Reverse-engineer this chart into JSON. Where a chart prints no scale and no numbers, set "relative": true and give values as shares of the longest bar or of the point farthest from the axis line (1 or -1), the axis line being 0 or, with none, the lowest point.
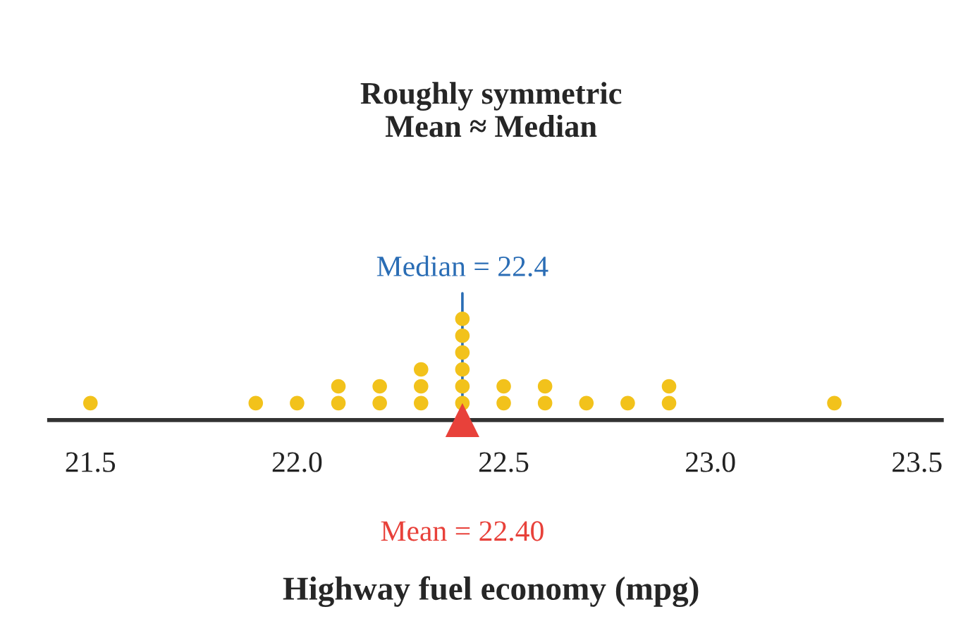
{
  "chart_data": {
    "type": "scatter",
    "title": "Roughly symmetric\nMean ≈ Median",
    "xlabel": "Highway fuel economy (mpg)",
    "relative": true,
    "marker": "circle",
    "grid": false,
    "legend": false,
    "series": [
      {
        "color": "#f2c21b",
        "x": [
          21.5,
          21.9,
          22.0,
          22.1,
          22.1,
          22.2,
          22.2,
          22.3,
          22.3,
          22.3,
          22.4,
          22.4,
          22.4,
          22.4,
          22.4,
          22.4,
          22.5,
          22.5,
          22.6,
          22.6,
          22.7,
          22.8,
          22.9,
          22.9,
          23.3
        ],
        "values": [
          0.167,
          0.167,
          0.167,
          0.167,
          0.333,
          0.167,
          0.333,
          0.167,
          0.333,
          0.5,
          0.167,
          0.333,
          0.5,
          0.667,
          0.833,
          1,
          0.167,
          0.333,
          0.167,
          0.333,
          0.167,
          0.167,
          0.167,
          0.333,
          0.167
        ]
      },
      {
        "name": "Mean = 22.40",
        "color": "#e8413a",
        "marker": "triangle",
        "x": [
          22.4
        ],
        "values": [
          0
        ]
      }
    ],
    "xlim": [
      21.4,
      23.56
    ],
    "xticks": [
      {
        "value": 21.5,
        "label": "21.5"
      },
      {
        "value": 22.0,
        "label": "22.0"
      },
      {
        "value": 22.5,
        "label": "22.5"
      },
      {
        "value": 23.0,
        "label": "23.0"
      },
      {
        "value": 23.5,
        "label": "23.5"
      }
    ],
    "ref_lines": [
      {
        "axis": "x",
        "value": 22.4,
        "label": "Median = 22.4",
        "color": "#2a6db5"
      }
    ]
  }
}
